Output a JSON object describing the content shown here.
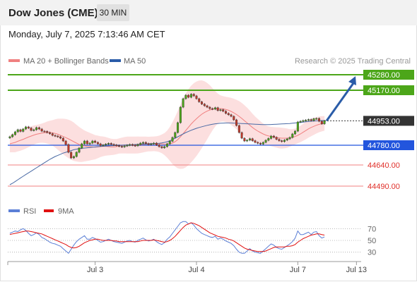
{
  "header": {
    "title": "Dow Jones (CME)",
    "timeframe": "30 MIN"
  },
  "datetime": "Monday, July 7, 2025 7:13:46 AM CET",
  "legend": {
    "ma20": "MA 20 + Bollinger Bands",
    "ma50": "MA 50",
    "credit": "Research © 2025 Trading Central"
  },
  "rsi_legend": {
    "rsi": "RSI",
    "ma9": "9MA"
  },
  "colors": {
    "resistance": "#4ca619",
    "support": "#2255dd",
    "weak_level": "#f08080",
    "current": "#333333",
    "ma20": "#f08080",
    "ma50": "#4a6aa5",
    "bollinger": "#fcd9d9",
    "arrow": "#2a5ca8",
    "candle_up": "#4ca619",
    "candle_down": "#c0392b"
  },
  "chart_data": {
    "type": "candlestick",
    "y_range": [
      44400,
      45330
    ],
    "x_ticks": [
      {
        "label": "Jul 3",
        "i": 32
      },
      {
        "label": "Jul 4",
        "i": 70
      },
      {
        "label": "Jul 7",
        "i": 108
      },
      {
        "label": "Jul 13",
        "i": 130
      }
    ],
    "n_slots": 132,
    "levels": [
      {
        "label": "45280.00",
        "value": 45280,
        "kind": "resistance"
      },
      {
        "label": "45170.00",
        "value": 45170,
        "kind": "resistance"
      },
      {
        "label": "44953.00",
        "value": 44953,
        "kind": "current"
      },
      {
        "label": "44780.00",
        "value": 44780,
        "kind": "support"
      },
      {
        "label": "44640.00",
        "value": 44640,
        "kind": "weak"
      },
      {
        "label": "44490.00",
        "value": 44490,
        "kind": "weak"
      }
    ],
    "close": [
      44840,
      44855,
      44875,
      44890,
      44878,
      44895,
      44910,
      44902,
      44885,
      44890,
      44905,
      44895,
      44880,
      44878,
      44870,
      44862,
      44850,
      44845,
      44840,
      44830,
      44810,
      44785,
      44730,
      44690,
      44700,
      44730,
      44760,
      44790,
      44810,
      44790,
      44795,
      44810,
      44800,
      44790,
      44778,
      44782,
      44788,
      44793,
      44786,
      44782,
      44778,
      44772,
      44768,
      44775,
      44780,
      44785,
      44780,
      44776,
      44785,
      44795,
      44800,
      44792,
      44785,
      44790,
      44795,
      44782,
      44770,
      44762,
      44770,
      44790,
      44808,
      44835,
      44870,
      44940,
      45050,
      45110,
      45135,
      45120,
      45142,
      45130,
      45110,
      45088,
      45072,
      45060,
      45050,
      45040,
      45036,
      45046,
      45026,
      45032,
      45021,
      45006,
      44996,
      44985,
      44960,
      44920,
      44870,
      44830,
      44810,
      44816,
      44826,
      44812,
      44800,
      44794,
      44788,
      44800,
      44815,
      44828,
      44845,
      44836,
      44822,
      44812,
      44806,
      44816,
      44825,
      44835,
      44860,
      44880,
      44945,
      44950,
      44955,
      44958,
      44962,
      44955,
      44968,
      44970,
      44950,
      44932,
      44953
    ],
    "ma20": [
      44790,
      44795,
      44800,
      44808,
      44815,
      44822,
      44830,
      44838,
      44845,
      44852,
      44858,
      44862,
      44866,
      44868,
      44870,
      44870,
      44868,
      44864,
      44858,
      44850,
      44842,
      44834,
      44825,
      44815,
      44805,
      44795,
      44786,
      44779,
      44775,
      44772,
      44770,
      44768,
      44766,
      44768,
      44770,
      44772,
      44772,
      44770,
      44768,
      44768,
      44770,
      44775,
      44778,
      44780,
      44781,
      44781,
      44781,
      44781,
      44782,
      44783,
      44785,
      44787,
      44788,
      44789,
      44790,
      44790,
      44790,
      44790,
      44788,
      44788,
      44790,
      44795,
      44805,
      44820,
      44840,
      44862,
      44885,
      44908,
      44930,
      44950,
      44968,
      44985,
      45000,
      45012,
      45022,
      45030,
      45035,
      45038,
      45040,
      45040,
      45038,
      45034,
      45028,
      45020,
      45010,
      44998,
      44985,
      44970,
      44954,
      44938,
      44922,
      44906,
      44892,
      44880,
      44870,
      44860,
      44852,
      44846,
      44842,
      44838,
      44835,
      44832,
      44830,
      44830,
      44830,
      44832,
      44836,
      44842,
      44850,
      44860,
      44872,
      44884,
      44896,
      44906,
      44914,
      44922,
      44928,
      44932,
      44935
    ],
    "bb_width": [
      60,
      65,
      70,
      72,
      74,
      74,
      74,
      72,
      70,
      68,
      66,
      66,
      68,
      72,
      78,
      84,
      90,
      100,
      110,
      118,
      126,
      132,
      136,
      138,
      136,
      130,
      124,
      118,
      110,
      104,
      98,
      92,
      86,
      80,
      74,
      70,
      66,
      62,
      58,
      56,
      54,
      54,
      56,
      58,
      60,
      60,
      60,
      60,
      60,
      58,
      56,
      54,
      52,
      52,
      52,
      54,
      58,
      66,
      78,
      96,
      120,
      148,
      176,
      204,
      228,
      248,
      262,
      270,
      272,
      270,
      264,
      254,
      240,
      222,
      200,
      176,
      150,
      126,
      106,
      94,
      90,
      90,
      92,
      96,
      100,
      104,
      108,
      110,
      110,
      108,
      104,
      98,
      92,
      86,
      80,
      74,
      70,
      68,
      68,
      70,
      72,
      74,
      74,
      72,
      68,
      62,
      58,
      56,
      56,
      58,
      60,
      62,
      62,
      62,
      60,
      58,
      56,
      54,
      52
    ],
    "ma50": [
      44500,
      44510,
      44522,
      44535,
      44548,
      44560,
      44572,
      44584,
      44596,
      44608,
      44620,
      44632,
      44644,
      44656,
      44668,
      44680,
      44690,
      44700,
      44708,
      44716,
      44724,
      44730,
      44736,
      44742,
      44748,
      44752,
      44756,
      44758,
      44760,
      44762,
      44764,
      44766,
      44768,
      44770,
      44772,
      44773,
      44774,
      44775,
      44776,
      44777,
      44778,
      44779,
      44780,
      44781,
      44782,
      44783,
      44784,
      44785,
      44786,
      44787,
      44788,
      44789,
      44790,
      44791,
      44792,
      44793,
      44794,
      44796,
      44800,
      44805,
      44812,
      44820,
      44830,
      44840,
      44850,
      44860,
      44870,
      44878,
      44886,
      44893,
      44900,
      44906,
      44911,
      44916,
      44921,
      44925,
      44929,
      44932,
      44934,
      44936,
      44937,
      44938,
      44938,
      44938,
      44937,
      44936,
      44935,
      44934,
      44933,
      44932,
      44931,
      44930,
      44929,
      44928,
      44927,
      44926,
      44926,
      44926,
      44927,
      44928,
      44929,
      44930,
      44931,
      44932,
      44933,
      44934,
      44936,
      44938,
      44940,
      44942,
      44944,
      44946,
      44948,
      44950,
      44952,
      44953,
      44954,
      44955,
      44955
    ],
    "rsi_axis": [
      "70",
      "50",
      "30"
    ],
    "rsi_range": [
      20,
      80
    ],
    "rsi": [
      62,
      64,
      66,
      65,
      68,
      70,
      67,
      62,
      58,
      60,
      63,
      60,
      55,
      53,
      50,
      47,
      45,
      44,
      42,
      40,
      36,
      32,
      28,
      35,
      42,
      48,
      52,
      55,
      58,
      52,
      52,
      55,
      53,
      50,
      47,
      48,
      50,
      52,
      50,
      48,
      47,
      46,
      45,
      47,
      49,
      50,
      48,
      47,
      50,
      52,
      54,
      51,
      49,
      50,
      52,
      48,
      45,
      43,
      46,
      52,
      56,
      62,
      68,
      74,
      80,
      82,
      82,
      78,
      80,
      76,
      70,
      66,
      62,
      60,
      58,
      56,
      55,
      57,
      52,
      54,
      52,
      49,
      47,
      45,
      41,
      35,
      30,
      28,
      28,
      32,
      36,
      32,
      30,
      29,
      28,
      32,
      36,
      40,
      44,
      42,
      38,
      36,
      35,
      38,
      41,
      44,
      48,
      54,
      66,
      60,
      60,
      62,
      64,
      60,
      64,
      65,
      58,
      54,
      56
    ],
    "rsi_ma9": [
      60,
      61,
      62,
      63,
      64,
      65,
      66,
      66,
      65,
      64,
      63,
      62,
      61,
      59,
      57,
      55,
      53,
      51,
      49,
      47,
      45,
      43,
      40,
      38,
      37,
      38,
      40,
      43,
      46,
      48,
      50,
      51,
      52,
      52,
      51,
      50,
      50,
      50,
      50,
      49,
      49,
      48,
      48,
      48,
      48,
      48,
      48,
      48,
      48,
      49,
      50,
      50,
      50,
      50,
      51,
      50,
      49,
      48,
      47,
      48,
      50,
      53,
      57,
      62,
      67,
      72,
      76,
      78,
      80,
      79,
      77,
      75,
      72,
      69,
      66,
      63,
      61,
      59,
      57,
      56,
      55,
      54,
      52,
      51,
      49,
      46,
      43,
      40,
      37,
      35,
      34,
      33,
      32,
      31,
      31,
      31,
      32,
      34,
      36,
      38,
      39,
      39,
      39,
      39,
      40,
      40,
      41,
      43,
      47,
      50,
      53,
      55,
      57,
      59,
      60,
      61,
      61,
      60,
      59
    ]
  }
}
